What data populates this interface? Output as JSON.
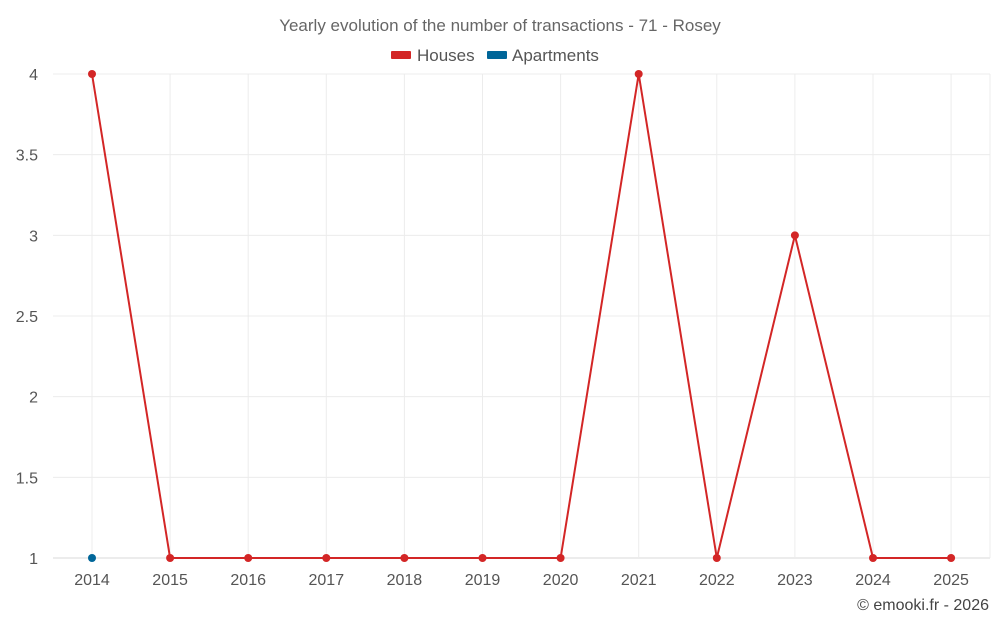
{
  "chart_data": {
    "type": "line",
    "title": "Yearly evolution of the number of transactions - 71 - Rosey",
    "xlabel": "",
    "ylabel": "",
    "categories": [
      "2014",
      "2015",
      "2016",
      "2017",
      "2018",
      "2019",
      "2020",
      "2021",
      "2022",
      "2023",
      "2024",
      "2025"
    ],
    "ylim": [
      1,
      4
    ],
    "y_ticks": [
      "1",
      "1.5",
      "2",
      "2.5",
      "3",
      "3.5",
      "4"
    ],
    "grid": true,
    "legend_position": "top-center",
    "series": [
      {
        "name": "Houses",
        "color": "#d32626",
        "values": [
          4,
          1,
          1,
          1,
          1,
          1,
          1,
          4,
          1,
          3,
          1,
          1
        ]
      },
      {
        "name": "Apartments",
        "color": "#006699",
        "values": [
          1,
          null,
          null,
          null,
          null,
          null,
          null,
          null,
          null,
          null,
          null,
          null
        ]
      }
    ]
  },
  "credit": "© emooki.fr - 2026"
}
